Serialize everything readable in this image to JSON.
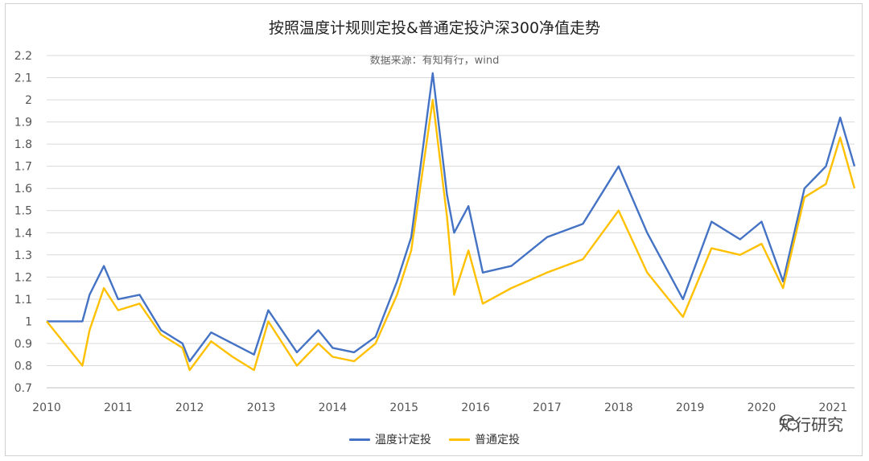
{
  "chart_data": {
    "type": "line",
    "title": "按照温度计规则定投&普通定投沪深300净值走势",
    "subtitle": "数据来源：有知有行，wind",
    "ylim": [
      0.7,
      2.2
    ],
    "yticks": [
      "0.7",
      "0.8",
      "0.9",
      "1",
      "1.1",
      "1.2",
      "1.3",
      "1.4",
      "1.5",
      "1.6",
      "1.7",
      "1.8",
      "1.9",
      "2",
      "2.1",
      "2.2"
    ],
    "xticks": [
      "2010",
      "2011",
      "2012",
      "2013",
      "2014",
      "2015",
      "2016",
      "2017",
      "2018",
      "2019",
      "2020",
      "2021"
    ],
    "xlim": [
      2010,
      2021.3
    ],
    "legend_position": "bottom",
    "series": [
      {
        "name": "温度计定投",
        "color": "#4472c4",
        "x": [
          2010.0,
          2010.3,
          2010.5,
          2010.6,
          2010.8,
          2011.0,
          2011.3,
          2011.6,
          2011.9,
          2012.0,
          2012.3,
          2012.6,
          2012.9,
          2013.1,
          2013.5,
          2013.8,
          2014.0,
          2014.3,
          2014.6,
          2014.9,
          2015.1,
          2015.4,
          2015.6,
          2015.7,
          2015.9,
          2016.1,
          2016.5,
          2017.0,
          2017.5,
          2018.0,
          2018.4,
          2018.9,
          2019.3,
          2019.7,
          2020.0,
          2020.3,
          2020.6,
          2020.9,
          2021.1,
          2021.3
        ],
        "values": [
          1.0,
          1.0,
          1.0,
          1.12,
          1.25,
          1.1,
          1.12,
          0.96,
          0.9,
          0.82,
          0.95,
          0.9,
          0.85,
          1.05,
          0.86,
          0.96,
          0.88,
          0.86,
          0.93,
          1.18,
          1.38,
          2.12,
          1.57,
          1.4,
          1.52,
          1.22,
          1.25,
          1.38,
          1.44,
          1.7,
          1.4,
          1.1,
          1.45,
          1.37,
          1.45,
          1.18,
          1.6,
          1.7,
          1.92,
          1.7
        ]
      },
      {
        "name": "普通定投",
        "color": "#ffc000",
        "x": [
          2010.0,
          2010.3,
          2010.5,
          2010.6,
          2010.8,
          2011.0,
          2011.3,
          2011.6,
          2011.9,
          2012.0,
          2012.3,
          2012.6,
          2012.9,
          2013.1,
          2013.5,
          2013.8,
          2014.0,
          2014.3,
          2014.6,
          2014.9,
          2015.1,
          2015.4,
          2015.6,
          2015.7,
          2015.9,
          2016.1,
          2016.5,
          2017.0,
          2017.5,
          2018.0,
          2018.4,
          2018.9,
          2019.3,
          2019.7,
          2020.0,
          2020.3,
          2020.6,
          2020.9,
          2021.1,
          2021.3
        ],
        "values": [
          1.0,
          0.88,
          0.8,
          0.96,
          1.15,
          1.05,
          1.08,
          0.94,
          0.88,
          0.78,
          0.91,
          0.84,
          0.78,
          1.0,
          0.8,
          0.9,
          0.84,
          0.82,
          0.9,
          1.12,
          1.32,
          2.0,
          1.47,
          1.12,
          1.32,
          1.08,
          1.15,
          1.22,
          1.28,
          1.5,
          1.22,
          1.02,
          1.33,
          1.3,
          1.35,
          1.15,
          1.56,
          1.62,
          1.83,
          1.6
        ]
      }
    ]
  },
  "watermark": {
    "text": "知行研究",
    "icon": "wechat-icon"
  }
}
